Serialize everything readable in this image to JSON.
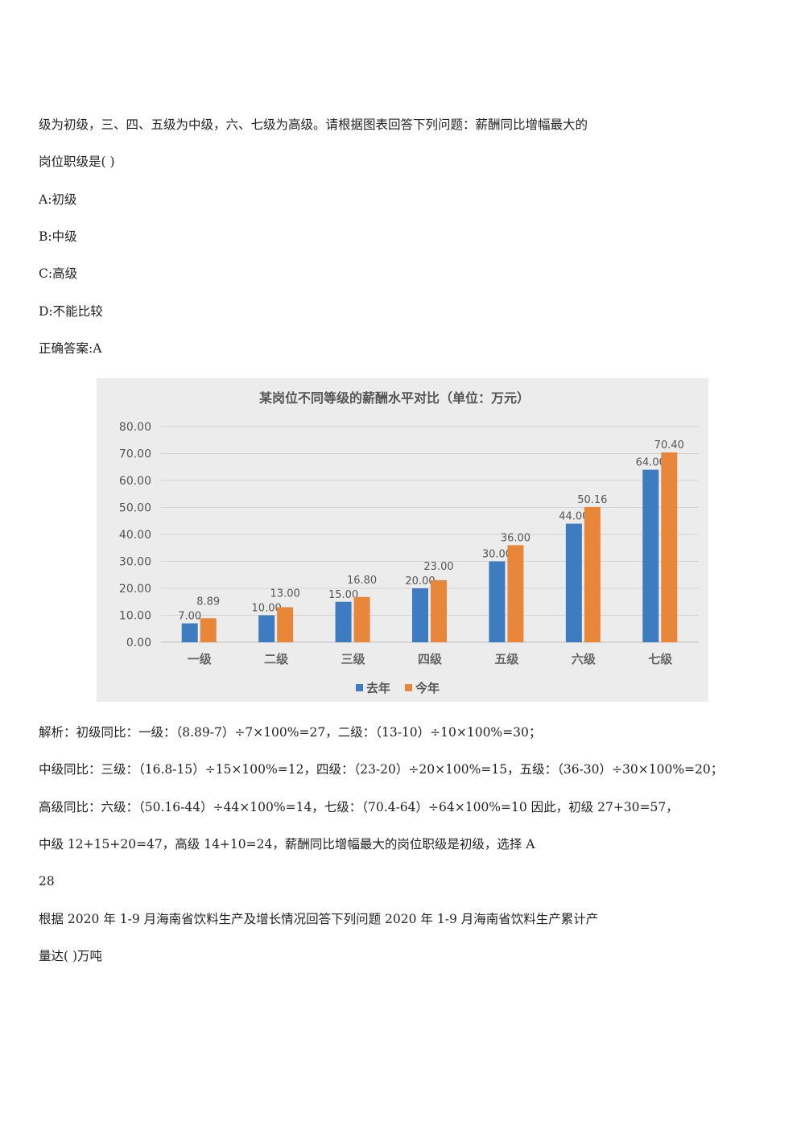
{
  "lines": [
    "级为初级，三、四、五级为中级，六、七级为高级。请根据图表回答下列问题：薪酬同比增幅最大的",
    "岗位职级是( )",
    "A:初级",
    "B:中级",
    "C:高级",
    "D:不能比较",
    "正确答案:A",
    "解析：初级同比：一级：（8.89-7）÷7×100%=27，二级：（13-10）÷10×100%=30；",
    "中级同比：三级：（16.8-15）÷15×100%=12，四级：（23-20）÷20×100%=15，五级：（36-30）÷30×100%=20；",
    "高级同比：六级：（50.16-44）÷44×100%=14，七级：（70.4-64）÷64×100%=10 因此，初级 27+30=57，",
    "中级 12+15+20=47，高级 14+10=24，薪酬同比增幅最大的岗位职级是初级，选择 A",
    "28",
    "根据 2020 年 1-9 月海南省饮料生产及增长情况回答下列问题 2020 年 1-9 月海南省饮料生产累计产",
    "量达( )万吨"
  ],
  "chart_data": {
    "type": "bar",
    "title": "某岗位不同等级的薪酬水平对比（单位：万元）",
    "categories": [
      "一级",
      "二级",
      "三级",
      "四级",
      "五级",
      "六级",
      "七级"
    ],
    "series": [
      {
        "name": "去年",
        "color": "#3d7cc0",
        "values": [
          7.0,
          10.0,
          15.0,
          20.0,
          30.0,
          44.0,
          64.0
        ]
      },
      {
        "name": "今年",
        "color": "#e8873a",
        "values": [
          8.89,
          13.0,
          16.8,
          23.0,
          36.0,
          50.16,
          70.4
        ]
      }
    ],
    "yticks": [
      "0.00",
      "10.00",
      "20.00",
      "30.00",
      "40.00",
      "50.00",
      "60.00",
      "70.00",
      "80.00"
    ],
    "ylim": [
      0,
      80
    ],
    "grid": true,
    "legend": "bottom"
  }
}
